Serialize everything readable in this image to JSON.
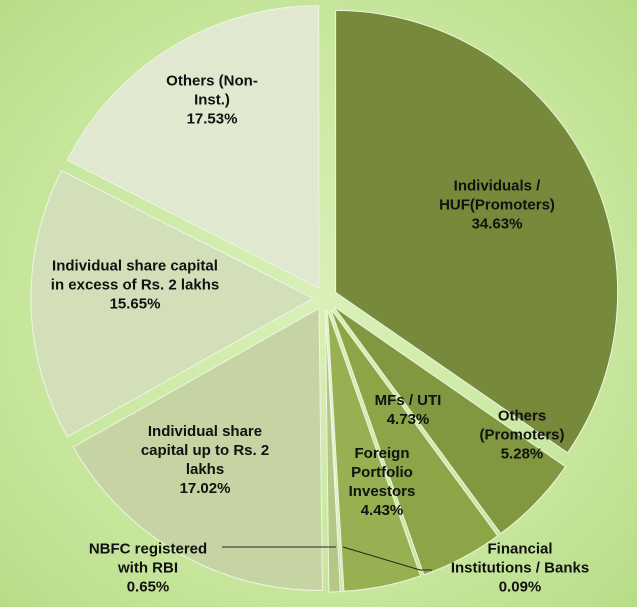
{
  "chart_data": {
    "type": "pie",
    "categories": [
      "Individuals / HUF(Promoters)",
      "Others (Promoters)",
      "MFs / UTI",
      "Foreign Portfolio Investors",
      "Financial Institutions / Banks",
      "NBFC registered with RBI",
      "Individual share capital up to Rs. 2 lakhs",
      "Individual share capital in excess of Rs. 2 lakhs",
      "Others (Non-Inst.)"
    ],
    "values": [
      34.63,
      5.28,
      4.73,
      4.43,
      0.09,
      0.65,
      17.02,
      15.65,
      17.53
    ],
    "value_labels": [
      "34.63%",
      "5.28%",
      "4.73%",
      "4.43%",
      "0.09%",
      "0.65%",
      "17.02%",
      "15.65%",
      "17.53%"
    ],
    "colors": [
      "#77893b",
      "#819840",
      "#8ca547",
      "#97b052",
      "#a6bd6c",
      "#b4c786",
      "#c5d4a2",
      "#d3dfb9",
      "#e0e9cf"
    ]
  }
}
